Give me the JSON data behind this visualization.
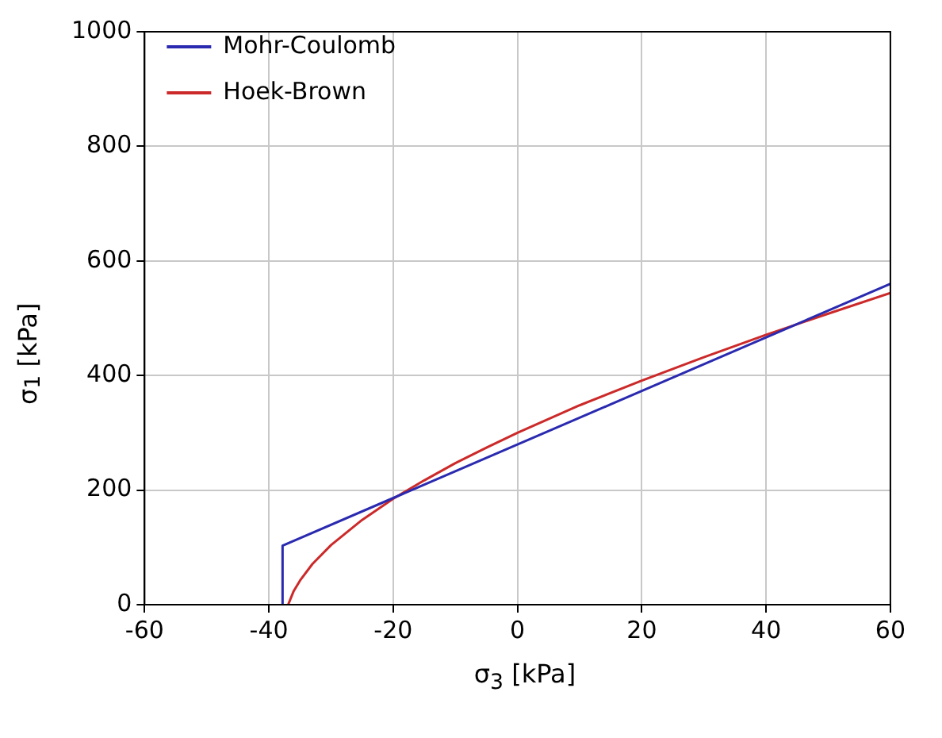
{
  "chart_data": {
    "type": "line",
    "xlabel": "σ$_{3}$ [kPa]",
    "ylabel": "σ$_{1}$ [kPa]",
    "xlim": [
      -60,
      60
    ],
    "xticks": [
      -60,
      -40,
      -20,
      0,
      20,
      40,
      60
    ],
    "ylim": [
      0,
      1000
    ],
    "yticks": [
      0,
      200,
      400,
      600,
      800,
      1000
    ],
    "grid": true,
    "legend": "top left",
    "marker": "none",
    "line_style": "solid",
    "series": [
      {
        "name": "Mohr-Coulomb",
        "color": "#2a2ab0",
        "x": [
          -37.8,
          -37.8,
          60
        ],
        "values": [
          0,
          103,
          560
        ]
      },
      {
        "name": "Hoek-Brown",
        "color": "#cc2a2a",
        "x": [
          -36.9,
          -36,
          -35,
          -33,
          -30,
          -25,
          -20,
          -15,
          -10,
          -5,
          0,
          10,
          20,
          30,
          40,
          50,
          60
        ],
        "values": [
          0,
          24,
          42,
          71,
          104,
          148,
          185,
          217,
          247,
          274,
          300,
          348,
          391,
          432,
          471,
          508,
          544
        ]
      }
    ]
  }
}
